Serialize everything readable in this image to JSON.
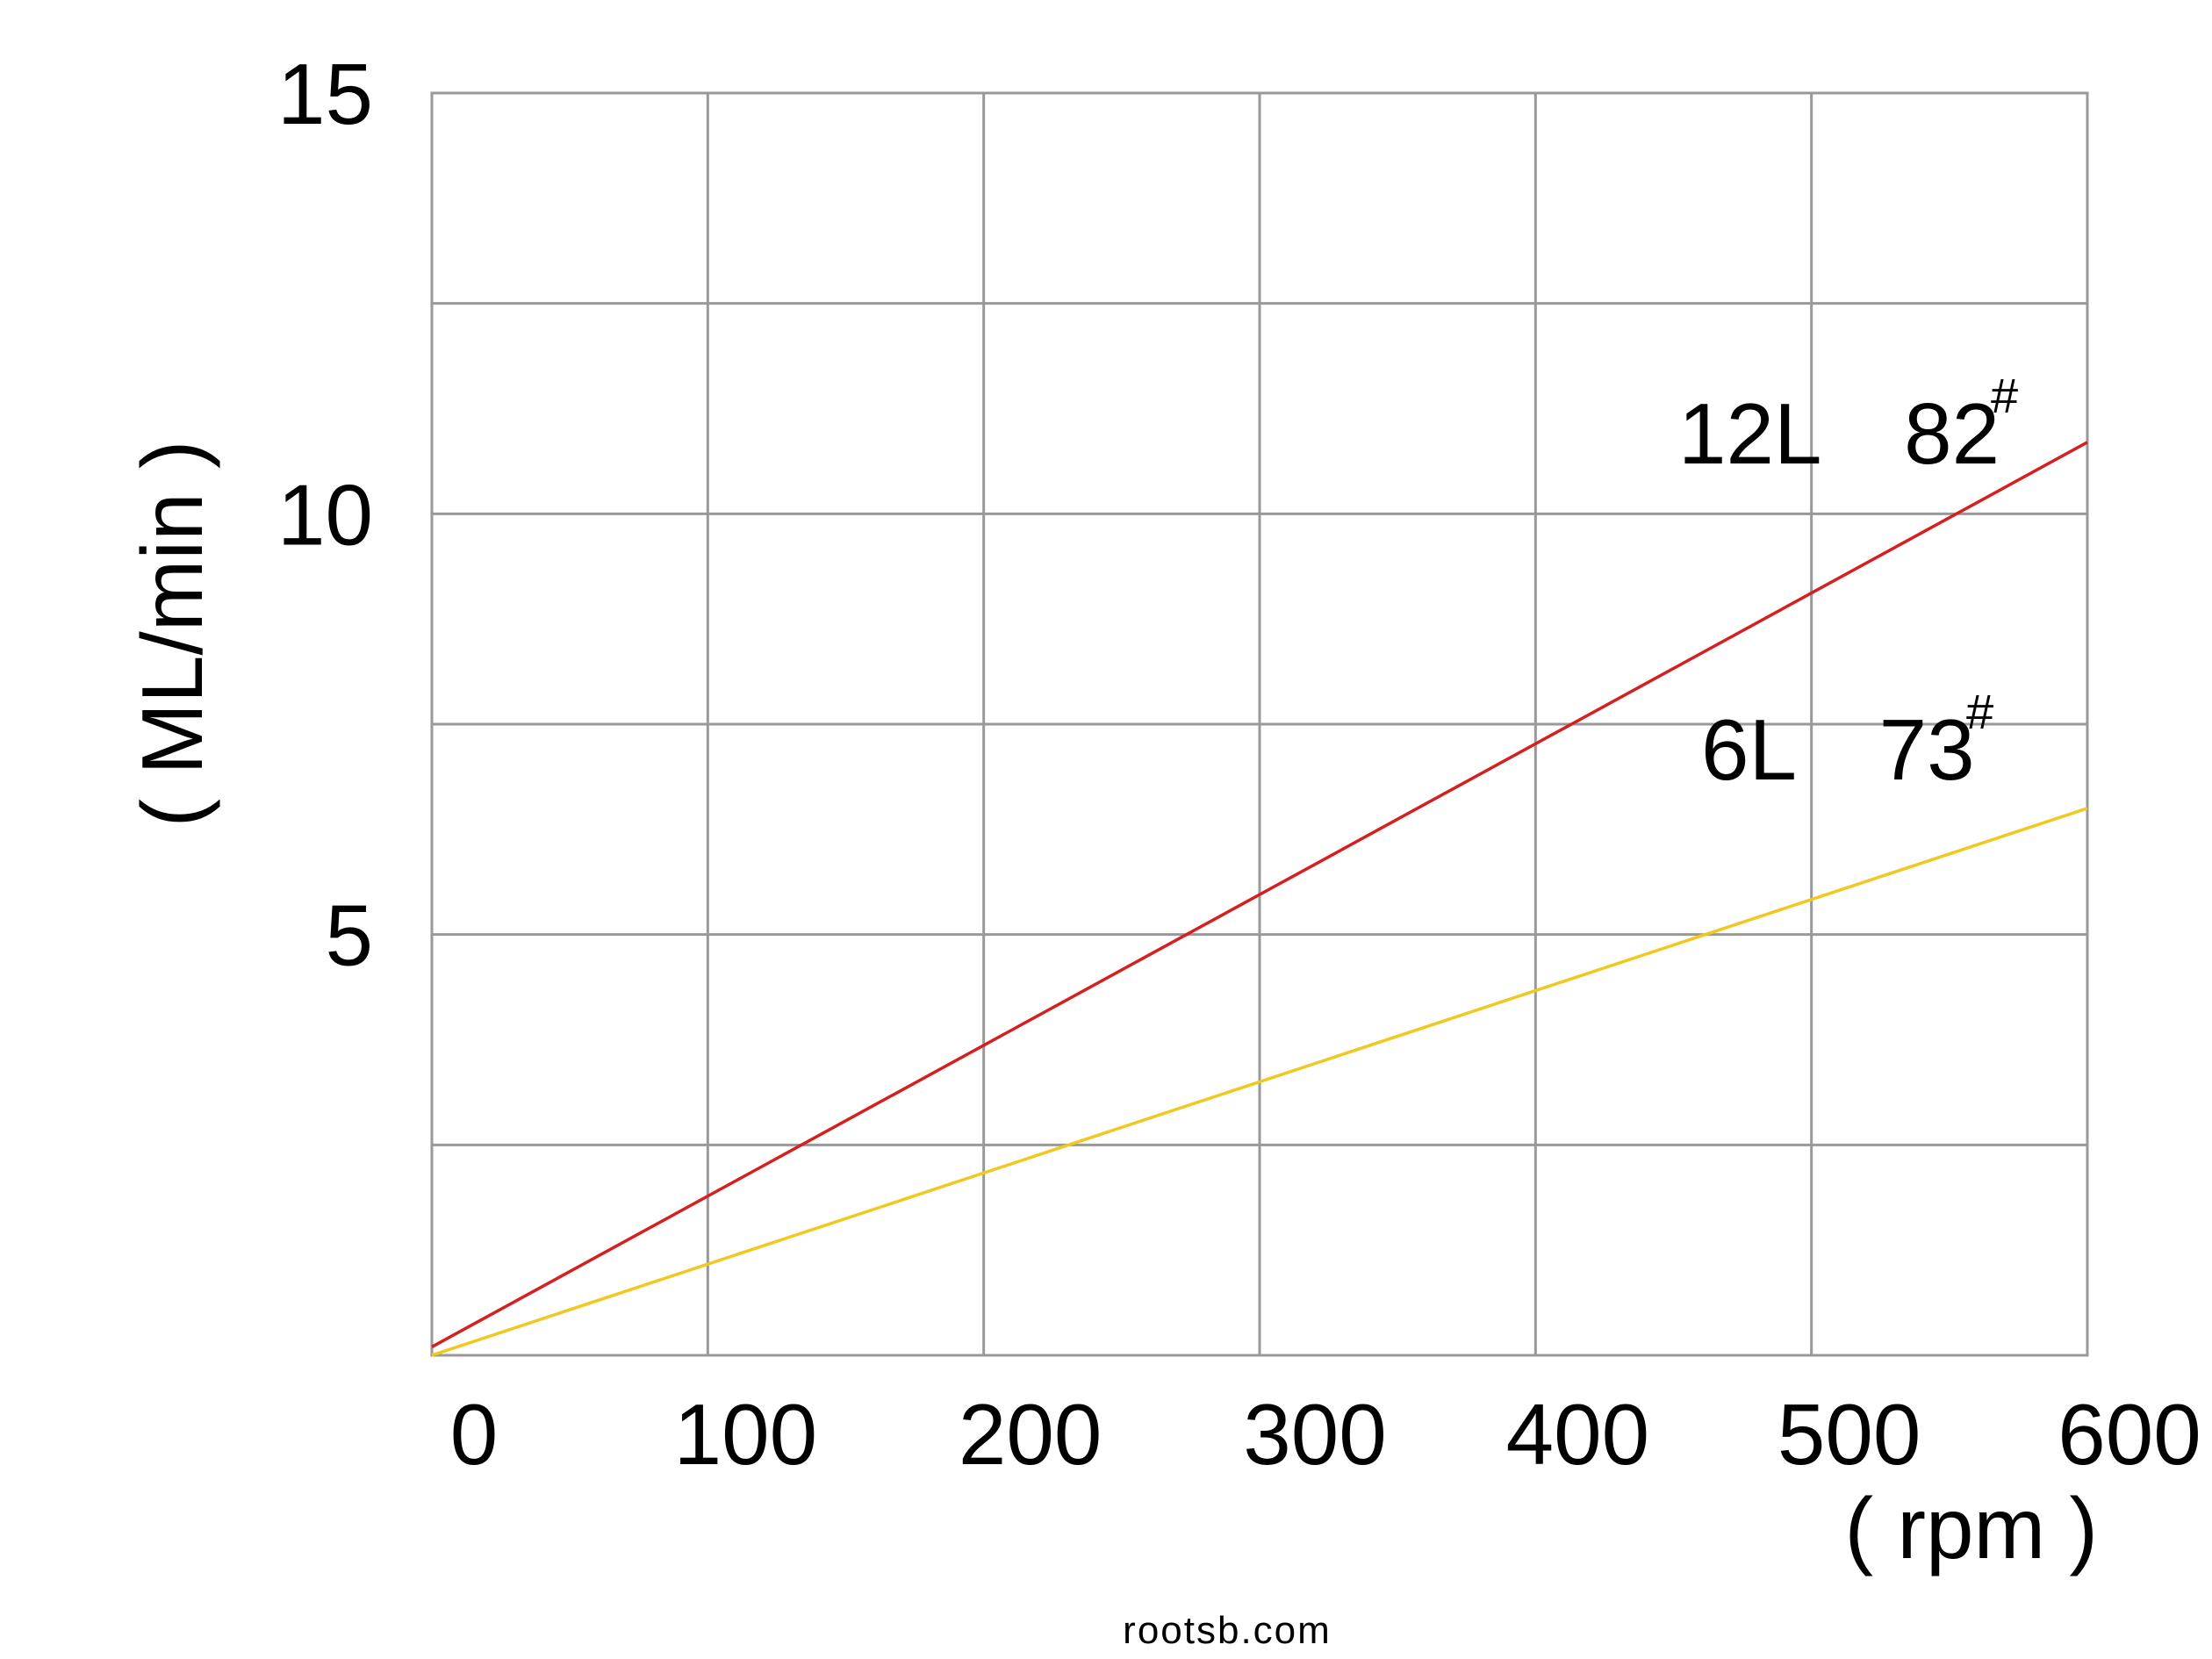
{
  "chart_data": {
    "type": "line",
    "x_axis": {
      "unit": "( rpm )",
      "ticks": [
        0,
        100,
        200,
        300,
        400,
        500,
        600
      ],
      "range": [
        0,
        600
      ]
    },
    "y_axis": {
      "unit": "( ML/min )",
      "ticks": [
        5,
        10,
        15
      ],
      "range": [
        0,
        15
      ],
      "gridlines": [
        2.5,
        5,
        7.5,
        10,
        12.5
      ]
    },
    "grid": true,
    "series": [
      {
        "name": "12L",
        "model": "82",
        "mark": "#",
        "color": "#d42020",
        "x": [
          0,
          600
        ],
        "y": [
          0.1,
          10.85
        ]
      },
      {
        "name": "6L",
        "model": "73",
        "mark": "#",
        "color": "#f0c820",
        "x": [
          0,
          600
        ],
        "y": [
          0,
          6.5
        ]
      }
    ]
  },
  "watermark": "rootsb.com"
}
